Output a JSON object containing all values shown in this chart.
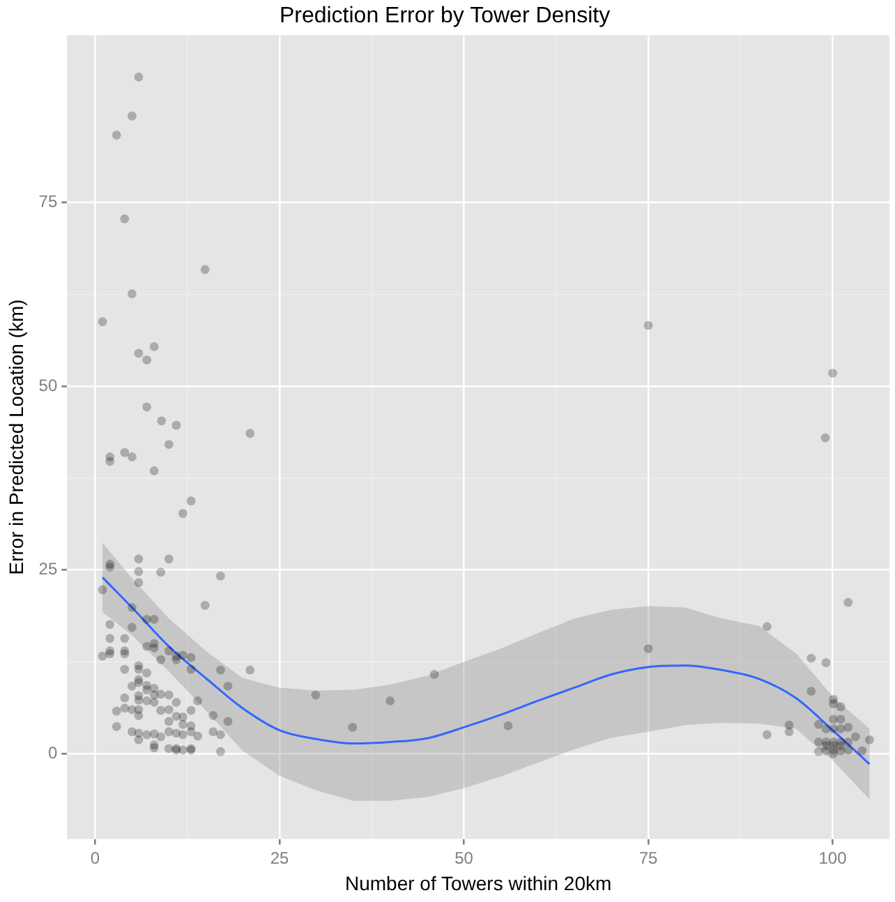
{
  "chart_data": {
    "type": "scatter",
    "title": "Prediction Error by Tower Density",
    "xlabel": "Number of Towers within 20km",
    "ylabel": "Error in Predicted Location (km)",
    "xlim": [
      -3.8,
      107.7
    ],
    "ylim": [
      -11.6,
      97.8
    ],
    "xticks": [
      0,
      25,
      50,
      75,
      100
    ],
    "yticks": [
      0,
      25,
      50,
      75
    ],
    "grid": true,
    "legend": false,
    "series": [
      {
        "color": "#000000",
        "marker": "circle",
        "x": [
          5.9,
          5.0,
          2.9,
          4.0,
          14.9,
          5.0,
          1.0,
          8.0,
          5.9,
          7.0,
          7.0,
          9.0,
          11.0,
          21.0,
          10.0,
          4.0,
          5.0,
          2.0,
          2.0,
          8.0,
          13.0,
          11.9,
          10.0,
          5.9,
          2.0,
          2.0,
          5.9,
          8.9,
          5.9,
          17.0,
          1.0,
          14.9,
          5.0,
          7.0,
          8.0,
          2.0,
          5.0,
          2.0,
          4.0,
          8.0,
          7.0,
          8.0,
          2.0,
          4.0,
          10.0,
          1.0,
          2.0,
          4.0,
          11.0,
          11.9,
          13.0,
          11.0,
          8.9,
          5.9,
          5.9,
          4.0,
          13.0,
          17.0,
          21.0,
          7.0,
          5.9,
          5.9,
          5.0,
          7.0,
          7.0,
          8.0,
          18.0,
          4.0,
          5.9,
          8.0,
          8.9,
          10.0,
          5.9,
          7.0,
          8.0,
          4.0,
          5.0,
          5.9,
          2.9,
          8.9,
          10.0,
          11.0,
          13.0,
          5.9,
          13.9,
          11.0,
          11.9,
          16.0,
          10.0,
          2.9,
          18.0,
          5.0,
          5.9,
          7.0,
          8.0,
          8.9,
          10.0,
          11.0,
          11.9,
          13.0,
          13.9,
          11.9,
          13.0,
          16.0,
          17.0,
          5.9,
          8.0,
          8.0,
          10.0,
          11.0,
          11.9,
          13.0,
          11.0,
          13.0,
          17.0,
          29.9,
          34.9,
          40.0,
          46.0,
          56.0,
          75.0,
          75.0,
          102.1,
          91.1,
          97.1,
          99.1,
          97.1,
          100.1,
          100.1,
          101.1,
          94.1,
          94.1,
          91.1,
          98.1,
          100.1,
          101.1,
          99.1,
          100.1,
          101.1,
          102.1,
          103.1,
          105.0,
          98.1,
          99.1,
          100.1,
          101.1,
          102.1,
          99.1,
          100.1,
          101.1,
          102.1,
          104.0,
          100.1,
          98.1,
          99.1,
          100.1,
          101.1,
          100.0,
          99.0
        ],
        "values": [
          92.1,
          86.8,
          84.2,
          72.8,
          65.9,
          62.6,
          58.8,
          55.4,
          54.5,
          53.6,
          47.2,
          45.3,
          44.7,
          43.6,
          42.1,
          41.0,
          40.4,
          40.4,
          39.8,
          38.5,
          34.4,
          32.7,
          26.5,
          26.5,
          25.8,
          25.4,
          24.8,
          24.7,
          23.3,
          24.2,
          22.3,
          20.2,
          19.9,
          18.3,
          18.3,
          17.6,
          17.2,
          15.7,
          15.7,
          15.0,
          14.6,
          14.4,
          14.0,
          14.0,
          14.0,
          13.3,
          13.6,
          13.6,
          13.3,
          13.4,
          13.1,
          12.8,
          12.8,
          12.0,
          11.5,
          11.5,
          11.5,
          11.4,
          11.4,
          11.0,
          10.1,
          9.7,
          9.2,
          9.3,
          8.7,
          8.9,
          9.2,
          7.6,
          7.9,
          8.0,
          8.1,
          8.0,
          7.3,
          7.2,
          7.0,
          6.2,
          6.0,
          6.0,
          5.8,
          5.9,
          6.0,
          7.0,
          5.9,
          5.2,
          7.2,
          5.1,
          5.0,
          5.2,
          4.4,
          3.7,
          4.4,
          3.0,
          2.8,
          2.6,
          2.7,
          2.3,
          3.0,
          2.8,
          2.6,
          3.0,
          2.4,
          4.0,
          3.8,
          3.0,
          2.6,
          1.9,
          1.2,
          0.8,
          0.7,
          0.7,
          0.5,
          0.7,
          0.5,
          0.5,
          0.3,
          8.0,
          3.6,
          7.2,
          10.8,
          3.8,
          14.3,
          58.3,
          20.6,
          17.3,
          13.0,
          12.4,
          8.5,
          7.4,
          6.8,
          6.4,
          3.9,
          3.0,
          2.6,
          4.0,
          4.7,
          4.7,
          3.4,
          3.4,
          3.4,
          3.6,
          2.3,
          1.9,
          1.6,
          1.6,
          1.6,
          1.6,
          1.6,
          0.4,
          0.5,
          0.4,
          0.5,
          0.4,
          0.0,
          0.3,
          1.1,
          1.1,
          1.1,
          51.8,
          43.0
        ]
      },
      {
        "type": "line",
        "color": "#3366ff",
        "marker": "none",
        "line_style": "solid",
        "x": [
          1,
          5,
          10,
          15,
          20,
          25,
          30,
          35,
          40,
          45,
          50,
          55,
          60,
          65,
          70,
          75,
          80,
          85,
          90,
          95,
          100,
          105
        ],
        "values": [
          24.0,
          19.9,
          14.6,
          10.3,
          6.2,
          3.2,
          2.0,
          1.4,
          1.6,
          2.1,
          3.6,
          5.3,
          7.2,
          9.0,
          10.8,
          11.8,
          12.0,
          11.4,
          10.2,
          7.6,
          3.2,
          -1.4
        ],
        "upper": [
          28.7,
          23.9,
          18.4,
          14.0,
          10.3,
          9.0,
          8.6,
          8.7,
          9.4,
          10.6,
          12.5,
          14.3,
          16.4,
          18.4,
          19.6,
          20.1,
          19.9,
          18.4,
          17.4,
          13.7,
          7.8,
          3.4
        ],
        "lower": [
          19.3,
          16.1,
          11.2,
          5.9,
          0.4,
          -3.0,
          -5.0,
          -6.4,
          -6.4,
          -5.9,
          -4.7,
          -3.1,
          -1.2,
          0.6,
          2.2,
          3.0,
          3.9,
          4.2,
          4.1,
          3.4,
          -0.9,
          -6.2
        ]
      }
    ]
  }
}
